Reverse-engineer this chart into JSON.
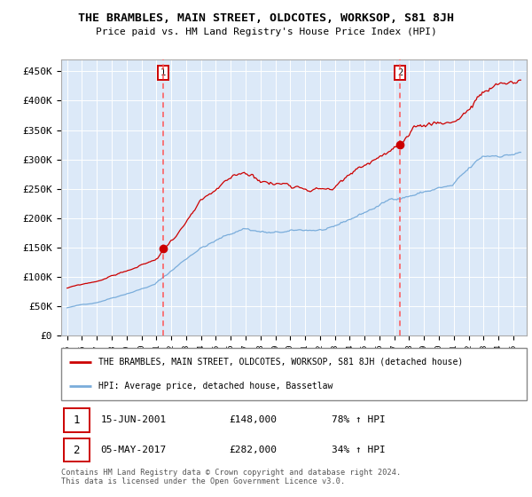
{
  "title": "THE BRAMBLES, MAIN STREET, OLDCOTES, WORKSOP, S81 8JH",
  "subtitle": "Price paid vs. HM Land Registry's House Price Index (HPI)",
  "legend_line1": "THE BRAMBLES, MAIN STREET, OLDCOTES, WORKSOP, S81 8JH (detached house)",
  "legend_line2": "HPI: Average price, detached house, Bassetlaw",
  "event1_date": "15-JUN-2001",
  "event1_price": "£148,000",
  "event1_hpi": "78% ↑ HPI",
  "event1_year": 2001.46,
  "event1_value": 148000,
  "event2_date": "05-MAY-2017",
  "event2_price": "£282,000",
  "event2_hpi": "34% ↑ HPI",
  "event2_year": 2017.37,
  "event2_value": 282000,
  "ylim": [
    0,
    470000
  ],
  "yticks": [
    0,
    50000,
    100000,
    150000,
    200000,
    250000,
    300000,
    350000,
    400000,
    450000
  ],
  "ytick_labels": [
    "£0",
    "£50K",
    "£100K",
    "£150K",
    "£200K",
    "£250K",
    "£300K",
    "£350K",
    "£400K",
    "£450K"
  ],
  "xlim_start": 1994.6,
  "xlim_end": 2025.9,
  "background_color": "#dce9f8",
  "line_color_red": "#cc0000",
  "line_color_blue": "#7aaddb",
  "marker_color": "#cc0000",
  "dashed_color": "#ff5555",
  "footer": "Contains HM Land Registry data © Crown copyright and database right 2024.\nThis data is licensed under the Open Government Licence v3.0."
}
